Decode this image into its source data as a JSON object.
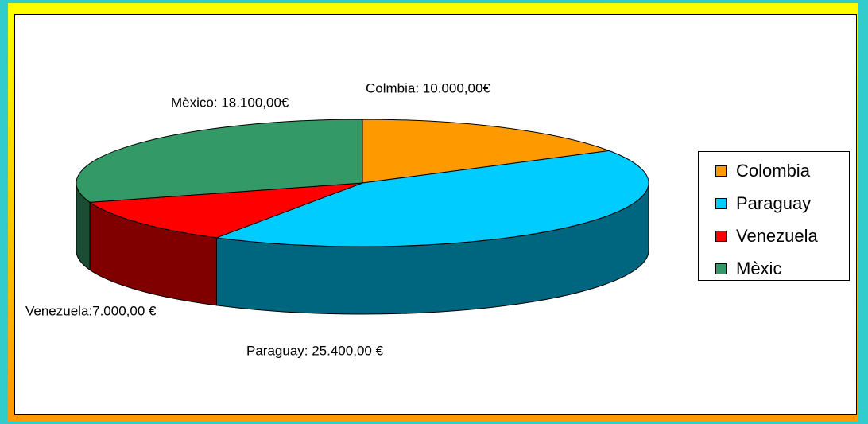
{
  "chart_data": {
    "type": "pie",
    "categories": [
      "Colombia",
      "Paraguay",
      "Venezuela",
      "Mèxic"
    ],
    "values": [
      10000,
      25400,
      7000,
      18100
    ],
    "value_labels": [
      "Colmbia: 10.000,00€",
      "Paraguay: 25.400,00 €",
      "Venezuela:7.000,00 €",
      "Mèxico: 18.100,00€"
    ],
    "colors": [
      "#ff9900",
      "#00ccff",
      "#ff0000",
      "#339966"
    ],
    "legend": "right",
    "three_d": true
  }
}
